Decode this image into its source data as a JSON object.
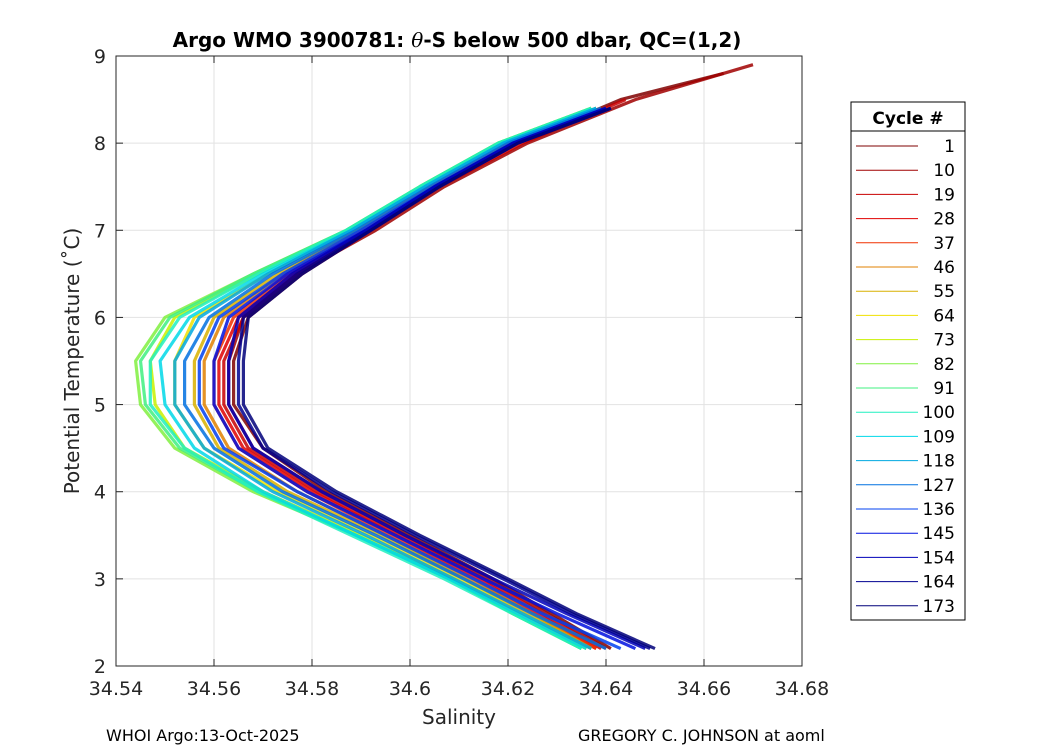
{
  "chart_data": {
    "type": "line",
    "title_prefix": "Argo WMO 3900781: ",
    "title_symbol": "θ",
    "title_suffix": "-S below 500 dbar,  QC=(1,2)",
    "xlabel": "Salinity",
    "ylabel": "Potential Temperature (˚C)",
    "xlim": [
      34.54,
      34.68
    ],
    "ylim": [
      2,
      9
    ],
    "xticks": [
      34.54,
      34.56,
      34.58,
      34.6,
      34.62,
      34.64,
      34.66,
      34.68
    ],
    "xtick_labels": [
      "34.54",
      "34.56",
      "34.58",
      "34.6",
      "34.62",
      "34.64",
      "34.66",
      "34.68"
    ],
    "yticks": [
      2,
      3,
      4,
      5,
      6,
      7,
      8,
      9
    ],
    "ytick_labels": [
      "2",
      "3",
      "4",
      "5",
      "6",
      "7",
      "8",
      "9"
    ],
    "grid": true,
    "legend_title": "Cycle #",
    "legend_position": "right",
    "series": [
      {
        "name": "1",
        "color": "#7f0000",
        "theta": [
          2.2,
          2.6,
          3.0,
          3.5,
          4.0,
          4.5,
          5.0,
          5.5,
          6.0,
          6.5,
          7.0,
          7.5,
          8.0,
          8.5,
          8.8
        ],
        "salinity": [
          34.641,
          34.629,
          34.617,
          34.6,
          34.583,
          34.57,
          34.564,
          34.564,
          34.567,
          34.578,
          34.592,
          34.606,
          34.622,
          34.643,
          34.664
        ]
      },
      {
        "name": "10",
        "color": "#a00000",
        "theta": [
          2.2,
          2.6,
          3.0,
          3.5,
          4.0,
          4.5,
          5.0,
          5.5,
          6.0,
          6.5,
          7.0,
          7.5,
          8.0,
          8.5,
          8.9
        ],
        "salinity": [
          34.64,
          34.628,
          34.616,
          34.599,
          34.582,
          34.568,
          34.563,
          34.563,
          34.566,
          34.577,
          34.593,
          34.607,
          34.624,
          34.646,
          34.67
        ]
      },
      {
        "name": "19",
        "color": "#c80000",
        "theta": [
          2.2,
          2.6,
          3.0,
          3.5,
          4.0,
          4.5,
          5.0,
          5.5,
          6.0,
          6.5,
          7.0,
          7.5,
          8.0,
          8.5
        ],
        "salinity": [
          34.639,
          34.627,
          34.615,
          34.598,
          34.581,
          34.567,
          34.562,
          34.562,
          34.566,
          34.577,
          34.592,
          34.606,
          34.623,
          34.644
        ]
      },
      {
        "name": "28",
        "color": "#e00000",
        "theta": [
          2.2,
          2.6,
          3.0,
          3.5,
          4.0,
          4.5,
          5.0,
          5.5,
          6.0,
          6.5,
          7.0,
          7.5,
          8.0,
          8.4
        ],
        "salinity": [
          34.638,
          34.626,
          34.614,
          34.597,
          34.58,
          34.566,
          34.561,
          34.561,
          34.565,
          34.576,
          34.591,
          34.605,
          34.621,
          34.64
        ]
      },
      {
        "name": "37",
        "color": "#f03000",
        "theta": [
          2.2,
          2.6,
          3.0,
          3.5,
          4.0,
          4.5,
          5.0,
          5.5,
          6.0,
          6.5,
          7.0,
          7.5,
          8.0,
          8.4
        ],
        "salinity": [
          34.638,
          34.625,
          34.613,
          34.596,
          34.579,
          34.565,
          34.56,
          34.56,
          34.564,
          34.575,
          34.59,
          34.604,
          34.62,
          34.639
        ]
      },
      {
        "name": "46",
        "color": "#e08000",
        "theta": [
          2.2,
          2.6,
          3.0,
          3.5,
          4.0,
          4.5,
          5.0,
          5.5,
          6.0,
          6.5,
          7.0,
          7.5,
          8.0,
          8.4
        ],
        "salinity": [
          34.637,
          34.625,
          34.612,
          34.595,
          34.577,
          34.563,
          34.558,
          34.558,
          34.562,
          34.574,
          34.589,
          34.603,
          34.619,
          34.638
        ]
      },
      {
        "name": "55",
        "color": "#d8b000",
        "theta": [
          2.2,
          2.6,
          3.0,
          3.5,
          4.0,
          4.5,
          5.0,
          5.5,
          6.0,
          6.5,
          7.0,
          7.5,
          8.0,
          8.4
        ],
        "salinity": [
          34.637,
          34.624,
          34.611,
          34.594,
          34.575,
          34.561,
          34.556,
          34.556,
          34.56,
          34.573,
          34.589,
          34.603,
          34.619,
          34.638
        ]
      },
      {
        "name": "64",
        "color": "#f0e000",
        "theta": [
          2.2,
          2.6,
          3.0,
          3.5,
          4.0,
          4.5,
          5.0,
          5.5,
          6.0,
          6.5,
          7.0,
          7.5,
          8.0,
          8.4
        ],
        "salinity": [
          34.636,
          34.623,
          34.61,
          34.592,
          34.573,
          34.558,
          34.552,
          34.552,
          34.556,
          34.571,
          34.588,
          34.602,
          34.618,
          34.637
        ]
      },
      {
        "name": "73",
        "color": "#c8f000",
        "theta": [
          2.2,
          2.6,
          3.0,
          3.5,
          4.0,
          4.5,
          5.0,
          5.5,
          6.0,
          6.5,
          7.0,
          7.5,
          8.0,
          8.4
        ],
        "salinity": [
          34.636,
          34.622,
          34.609,
          34.59,
          34.57,
          34.554,
          34.548,
          34.547,
          34.552,
          34.569,
          34.587,
          34.602,
          34.618,
          34.637
        ]
      },
      {
        "name": "82",
        "color": "#80f040",
        "theta": [
          2.2,
          2.6,
          3.0,
          3.5,
          4.0,
          4.5,
          5.0,
          5.5,
          6.0,
          6.5,
          7.0,
          7.5,
          8.0,
          8.4
        ],
        "salinity": [
          34.635,
          34.621,
          34.608,
          34.589,
          34.568,
          34.552,
          34.545,
          34.544,
          34.55,
          34.568,
          34.587,
          34.602,
          34.618,
          34.637
        ]
      },
      {
        "name": "91",
        "color": "#40f080",
        "theta": [
          2.2,
          2.6,
          3.0,
          3.5,
          4.0,
          4.5,
          5.0,
          5.5,
          6.0,
          6.5,
          7.0,
          7.5,
          8.0,
          8.4
        ],
        "salinity": [
          34.635,
          34.621,
          34.608,
          34.589,
          34.569,
          34.553,
          34.546,
          34.545,
          34.551,
          34.568,
          34.587,
          34.602,
          34.618,
          34.637
        ]
      },
      {
        "name": "100",
        "color": "#20f0c0",
        "theta": [
          2.2,
          2.6,
          3.0,
          3.5,
          4.0,
          4.5,
          5.0,
          5.5,
          6.0,
          6.5,
          7.0,
          7.5,
          8.0,
          8.4
        ],
        "salinity": [
          34.635,
          34.621,
          34.607,
          34.588,
          34.569,
          34.554,
          34.547,
          34.547,
          34.553,
          34.569,
          34.587,
          34.602,
          34.618,
          34.637
        ]
      },
      {
        "name": "109",
        "color": "#00d8e8",
        "theta": [
          2.2,
          2.6,
          3.0,
          3.5,
          4.0,
          4.5,
          5.0,
          5.5,
          6.0,
          6.5,
          7.0,
          7.5,
          8.0,
          8.4
        ],
        "salinity": [
          34.636,
          34.622,
          34.608,
          34.589,
          34.57,
          34.556,
          34.55,
          34.549,
          34.555,
          34.57,
          34.588,
          34.603,
          34.619,
          34.638
        ]
      },
      {
        "name": "118",
        "color": "#00a8e0",
        "theta": [
          2.2,
          2.6,
          3.0,
          3.5,
          4.0,
          4.5,
          5.0,
          5.5,
          6.0,
          6.5,
          7.0,
          7.5,
          8.0,
          8.4
        ],
        "salinity": [
          34.637,
          34.623,
          34.609,
          34.591,
          34.572,
          34.558,
          34.552,
          34.552,
          34.557,
          34.571,
          34.588,
          34.603,
          34.619,
          34.638
        ]
      },
      {
        "name": "127",
        "color": "#0070e0",
        "theta": [
          2.2,
          2.6,
          3.0,
          3.5,
          4.0,
          4.5,
          5.0,
          5.5,
          6.0,
          6.5,
          7.0,
          7.5,
          8.0,
          8.4
        ],
        "salinity": [
          34.64,
          34.625,
          34.611,
          34.593,
          34.574,
          34.56,
          34.554,
          34.554,
          34.559,
          34.572,
          34.589,
          34.604,
          34.62,
          34.639
        ]
      },
      {
        "name": "136",
        "color": "#0040f0",
        "theta": [
          2.2,
          2.6,
          3.0,
          3.5,
          4.0,
          4.5,
          5.0,
          5.5,
          6.0,
          6.5,
          7.0,
          7.5,
          8.0,
          8.4
        ],
        "salinity": [
          34.643,
          34.627,
          34.613,
          34.595,
          34.577,
          34.562,
          34.557,
          34.557,
          34.561,
          34.574,
          34.59,
          34.605,
          34.621,
          34.64
        ]
      },
      {
        "name": "145",
        "color": "#0010e0",
        "theta": [
          2.2,
          2.6,
          3.0,
          3.5,
          4.0,
          4.5,
          5.0,
          5.5,
          6.0,
          6.5,
          7.0,
          7.5,
          8.0,
          8.4
        ],
        "salinity": [
          34.646,
          34.63,
          34.615,
          34.597,
          34.579,
          34.565,
          34.56,
          34.56,
          34.563,
          34.575,
          34.591,
          34.605,
          34.621,
          34.64
        ]
      },
      {
        "name": "154",
        "color": "#0000b8",
        "theta": [
          2.2,
          2.6,
          3.0,
          3.5,
          4.0,
          4.5,
          5.0,
          5.5,
          6.0,
          6.5,
          7.0,
          7.5,
          8.0,
          8.4
        ],
        "salinity": [
          34.648,
          34.632,
          34.617,
          34.599,
          34.582,
          34.568,
          34.563,
          34.563,
          34.565,
          34.576,
          34.591,
          34.605,
          34.621,
          34.64
        ]
      },
      {
        "name": "164",
        "color": "#000090",
        "theta": [
          2.2,
          2.6,
          3.0,
          3.5,
          4.0,
          4.5,
          5.0,
          5.5,
          6.0,
          6.5,
          7.0,
          7.5,
          8.0,
          8.4
        ],
        "salinity": [
          34.649,
          34.633,
          34.619,
          34.601,
          34.584,
          34.57,
          34.565,
          34.565,
          34.566,
          34.577,
          34.592,
          34.606,
          34.622,
          34.641
        ]
      },
      {
        "name": "173",
        "color": "#00007a",
        "theta": [
          2.2,
          2.6,
          3.0,
          3.5,
          4.0,
          4.5,
          5.0,
          5.5,
          6.0,
          6.5,
          7.0,
          7.5,
          8.0,
          8.4
        ],
        "salinity": [
          34.65,
          34.634,
          34.62,
          34.602,
          34.585,
          34.571,
          34.566,
          34.566,
          34.567,
          34.578,
          34.592,
          34.606,
          34.622,
          34.641
        ]
      }
    ]
  },
  "footer": {
    "left": "WHOI Argo:13-Oct-2025",
    "right": "GREGORY C. JOHNSON at aoml"
  }
}
